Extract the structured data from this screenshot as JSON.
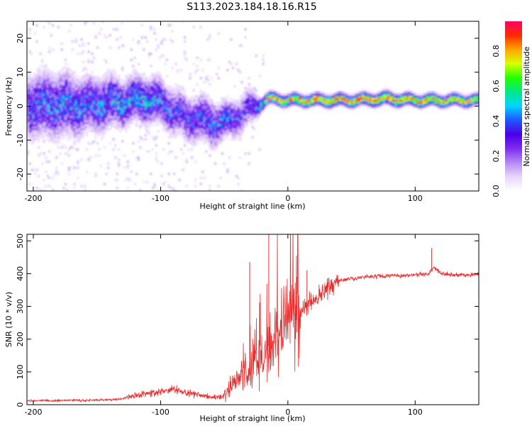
{
  "title": "S113.2023.184.18.16.R15",
  "colors": {
    "snr_line": "#ee2a2a",
    "axis": "#000000",
    "colormap": [
      "#ffffff",
      "#e9d6fb",
      "#b48af2",
      "#7f2cf2",
      "#4b00e6",
      "#2255ff",
      "#00d4ff",
      "#00e88a",
      "#22ff00",
      "#d8ff00",
      "#ffa500",
      "#ff2a00",
      "#ff0066"
    ]
  },
  "chart_data": [
    {
      "type": "heatmap",
      "title": "S113.2023.184.18.16.R15",
      "xlabel": "Height of straight line (km)",
      "ylabel": "Frequency (Hz)",
      "xlim": [
        -205,
        150
      ],
      "ylim": [
        -25,
        25
      ],
      "x_ticks": [
        -200,
        -100,
        0,
        100
      ],
      "x_tick_labels": [
        "-200",
        "-100",
        "0",
        "100"
      ],
      "y_ticks": [
        -20,
        -10,
        0,
        10,
        20
      ],
      "y_tick_labels": [
        "-20",
        "-10",
        "0",
        "10",
        "20"
      ],
      "colorbar": {
        "label": "Normalized spectral amplitude",
        "range": [
          0,
          0.97
        ],
        "ticks": [
          0.0,
          0.2,
          0.4,
          0.6,
          0.8
        ],
        "tick_labels": [
          "0.0",
          "0.2",
          "0.4",
          "0.6",
          "0.8"
        ]
      },
      "ridge": {
        "x": [
          -205,
          -190,
          -175,
          -160,
          -145,
          -130,
          -115,
          -100,
          -90,
          -80,
          -70,
          -60,
          -50,
          -40,
          -30,
          -22,
          -15,
          0,
          25,
          50,
          75,
          100,
          125,
          150
        ],
        "center_hz": [
          0,
          0,
          0,
          0,
          0.5,
          1,
          2,
          1,
          -2,
          -3.5,
          -4,
          -5,
          -5,
          -3,
          -1,
          1,
          2,
          1.5,
          1.5,
          1.5,
          2,
          1.5,
          1.5,
          1.5
        ],
        "peak_amplitude": [
          0.35,
          0.4,
          0.4,
          0.4,
          0.4,
          0.45,
          0.45,
          0.4,
          0.35,
          0.35,
          0.35,
          0.4,
          0.4,
          0.35,
          0.3,
          0.5,
          0.8,
          0.8,
          0.85,
          0.85,
          0.85,
          0.85,
          0.8,
          0.75
        ],
        "spread_hz": [
          7,
          7,
          7,
          6,
          6,
          5,
          5,
          5,
          5,
          5,
          5,
          5,
          4,
          4,
          4,
          1.5,
          1.3,
          1.3,
          1.3,
          1.3,
          1.4,
          1.3,
          1.3,
          1.3
        ]
      }
    },
    {
      "type": "line",
      "xlabel": "Height of straight line (km)",
      "ylabel": "SNR (10 * v/v)",
      "xlim": [
        -205,
        150
      ],
      "ylim": [
        0,
        520
      ],
      "x_ticks": [
        -200,
        -100,
        0,
        100
      ],
      "x_tick_labels": [
        "-200",
        "-100",
        "0",
        "100"
      ],
      "y_ticks": [
        0,
        100,
        200,
        300,
        400,
        500
      ],
      "y_tick_labels": [
        "0",
        "100",
        "200",
        "300",
        "400",
        "500"
      ],
      "series": [
        {
          "x": [
            -205,
            -190,
            -180,
            -170,
            -160,
            -150,
            -140,
            -130,
            -120,
            -110,
            -100,
            -90,
            -80,
            -70,
            -60,
            -50,
            -45,
            -40,
            -35,
            -30,
            -25,
            -20,
            -15,
            -10,
            -5,
            0,
            5,
            10,
            15,
            20,
            25,
            30,
            40,
            50,
            60,
            70,
            80,
            90,
            100,
            110,
            115,
            120,
            130,
            140,
            150
          ],
          "y": [
            12,
            13,
            12,
            14,
            13,
            14,
            15,
            18,
            28,
            35,
            40,
            45,
            38,
            30,
            22,
            25,
            50,
            80,
            110,
            90,
            120,
            140,
            180,
            210,
            240,
            250,
            270,
            290,
            300,
            320,
            340,
            360,
            380,
            385,
            390,
            392,
            393,
            395,
            397,
            398,
            420,
            400,
            395,
            395,
            398
          ]
        }
      ],
      "spikes": [
        {
          "x": -30,
          "y": 435
        },
        {
          "x": -15,
          "y": 520
        },
        {
          "x": 15,
          "y": 410
        },
        {
          "x": 113,
          "y": 478
        }
      ]
    }
  ]
}
